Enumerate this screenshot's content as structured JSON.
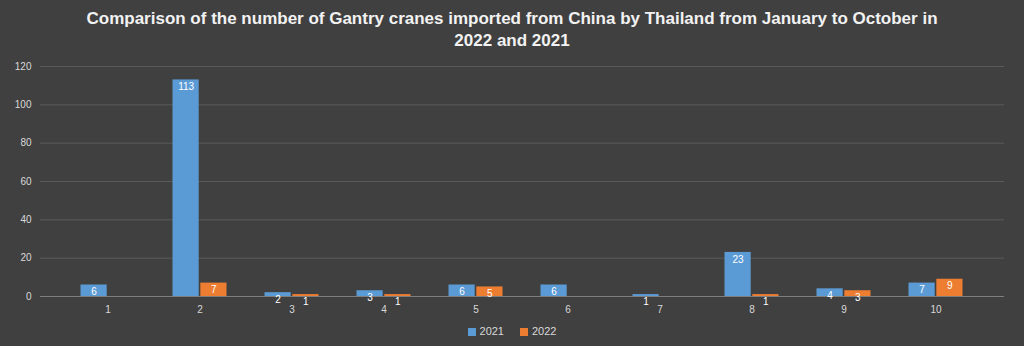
{
  "chart_data": {
    "type": "bar",
    "title": "Comparison of the number of Gantry cranes imported from China by Thailand from January to October in 2022 and 2021",
    "categories": [
      "1",
      "2",
      "3",
      "4",
      "5",
      "6",
      "7",
      "8",
      "9",
      "10"
    ],
    "series": [
      {
        "name": "2021",
        "color": "#5b9bd5",
        "values": [
          6,
          113,
          2,
          3,
          6,
          6,
          1,
          23,
          4,
          7
        ]
      },
      {
        "name": "2022",
        "color": "#ed7d31",
        "values": [
          null,
          7,
          1,
          1,
          5,
          null,
          null,
          1,
          3,
          9
        ]
      }
    ],
    "ylim": [
      0,
      120
    ],
    "yticks": [
      0,
      20,
      40,
      60,
      80,
      100,
      120
    ],
    "grid": true,
    "legend": "bottom",
    "data_labels": true
  }
}
